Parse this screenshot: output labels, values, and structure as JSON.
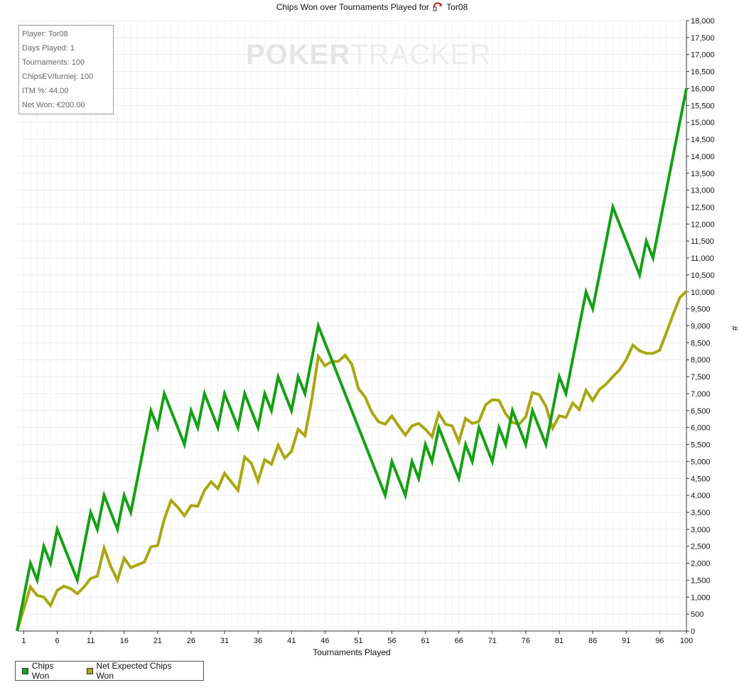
{
  "title_prefix": "Chips Won over Tournaments Played for",
  "player_name": "Tor08",
  "watermark": {
    "bold": "POKER",
    "light": "TRACKER"
  },
  "stats": {
    "player": "Player: Tor08",
    "days": "Days Played: 1",
    "tournaments": "Tournaments: 100",
    "chipsev": "ChipsEV/turniej: 100",
    "itm": "ITM %: 44.00",
    "net": "Net Won: €200.00"
  },
  "legend": {
    "chips_won": "Chips Won",
    "net_expected": "Net Expected Chips Won"
  },
  "colors": {
    "chips_won": "#16a016",
    "net_expected": "#a8a814",
    "grid": "#ececec"
  },
  "chart_data": {
    "type": "line",
    "title": "Chips Won over Tournaments Played for Tor08",
    "xlabel": "Tournaments Played",
    "ylabel": "#",
    "xlim": [
      0,
      100
    ],
    "ylim": [
      0,
      18000
    ],
    "x_ticks": [
      1,
      6,
      11,
      16,
      21,
      26,
      31,
      36,
      41,
      46,
      51,
      56,
      61,
      66,
      71,
      76,
      81,
      86,
      91,
      96,
      100
    ],
    "y_ticks": [
      "0",
      "500",
      "1,000",
      "1,500",
      "2,000",
      "2,500",
      "3,000",
      "3,500",
      "4,000",
      "4,500",
      "5,000",
      "5,500",
      "6,000",
      "6,500",
      "7,000",
      "7,500",
      "8,000",
      "8,500",
      "9,000",
      "9,500",
      "10,000",
      "10,500",
      "11,000",
      "11,500",
      "12,000",
      "12,500",
      "13,000",
      "13,500",
      "14,000",
      "14,500",
      "15,000",
      "15,500",
      "16,000",
      "16,500",
      "17,000",
      "17,500",
      "18,000"
    ],
    "y_tick_values": [
      0,
      500,
      1000,
      1500,
      2000,
      2500,
      3000,
      3500,
      4000,
      4500,
      5000,
      5500,
      6000,
      6500,
      7000,
      7500,
      8000,
      8500,
      9000,
      9500,
      10000,
      10500,
      11000,
      11500,
      12000,
      12500,
      13000,
      13500,
      14000,
      14500,
      15000,
      15500,
      16000,
      16500,
      17000,
      17500,
      18000
    ],
    "grid": true,
    "legend_position": "bottom-left",
    "series": [
      {
        "name": "Chips Won",
        "points": [
          [
            0,
            0
          ],
          [
            2,
            2000
          ],
          [
            3,
            1500
          ],
          [
            4,
            2500
          ],
          [
            5,
            2000
          ],
          [
            6,
            3000
          ],
          [
            9,
            1500
          ],
          [
            11,
            3500
          ],
          [
            12,
            3000
          ],
          [
            13,
            4000
          ],
          [
            15,
            3000
          ],
          [
            16,
            4000
          ],
          [
            17,
            3500
          ],
          [
            20,
            6500
          ],
          [
            21,
            6000
          ],
          [
            22,
            7000
          ],
          [
            25,
            5500
          ],
          [
            26,
            6500
          ],
          [
            27,
            6000
          ],
          [
            28,
            7000
          ],
          [
            30,
            6000
          ],
          [
            31,
            7000
          ],
          [
            33,
            6000
          ],
          [
            34,
            7000
          ],
          [
            36,
            6000
          ],
          [
            37,
            7000
          ],
          [
            38,
            6500
          ],
          [
            39,
            7500
          ],
          [
            41,
            6500
          ],
          [
            42,
            7500
          ],
          [
            43,
            7000
          ],
          [
            45,
            9000
          ],
          [
            55,
            4000
          ],
          [
            56,
            5000
          ],
          [
            58,
            4000
          ],
          [
            59,
            5000
          ],
          [
            60,
            4500
          ],
          [
            61,
            5500
          ],
          [
            62,
            5000
          ],
          [
            63,
            6000
          ],
          [
            66,
            4500
          ],
          [
            67,
            5500
          ],
          [
            68,
            5000
          ],
          [
            69,
            6000
          ],
          [
            71,
            5000
          ],
          [
            72,
            6000
          ],
          [
            73,
            5500
          ],
          [
            74,
            6500
          ],
          [
            76,
            5500
          ],
          [
            77,
            6500
          ],
          [
            79,
            5500
          ],
          [
            81,
            7500
          ],
          [
            82,
            7000
          ],
          [
            85,
            10000
          ],
          [
            86,
            9500
          ],
          [
            89,
            12500
          ],
          [
            93,
            10500
          ],
          [
            94,
            11500
          ],
          [
            95,
            11000
          ],
          [
            100,
            16000
          ]
        ]
      },
      {
        "name": "Net Expected Chips Won",
        "points": [
          [
            0,
            0
          ],
          [
            2,
            1300
          ],
          [
            3,
            1050
          ],
          [
            4,
            1000
          ],
          [
            5,
            750
          ],
          [
            6,
            1200
          ],
          [
            7,
            1320
          ],
          [
            8,
            1250
          ],
          [
            9,
            1100
          ],
          [
            10,
            1300
          ],
          [
            11,
            1550
          ],
          [
            12,
            1620
          ],
          [
            13,
            2450
          ],
          [
            14,
            1900
          ],
          [
            15,
            1500
          ],
          [
            16,
            2150
          ],
          [
            17,
            1870
          ],
          [
            18,
            1950
          ],
          [
            19,
            2030
          ],
          [
            20,
            2480
          ],
          [
            21,
            2520
          ],
          [
            22,
            3300
          ],
          [
            23,
            3850
          ],
          [
            24,
            3650
          ],
          [
            25,
            3400
          ],
          [
            26,
            3700
          ],
          [
            27,
            3680
          ],
          [
            28,
            4150
          ],
          [
            29,
            4400
          ],
          [
            30,
            4200
          ],
          [
            31,
            4650
          ],
          [
            32,
            4400
          ],
          [
            33,
            4150
          ],
          [
            34,
            5130
          ],
          [
            35,
            4950
          ],
          [
            36,
            4420
          ],
          [
            37,
            5050
          ],
          [
            38,
            4920
          ],
          [
            39,
            5480
          ],
          [
            40,
            5100
          ],
          [
            41,
            5300
          ],
          [
            42,
            5950
          ],
          [
            43,
            5760
          ],
          [
            44,
            6800
          ],
          [
            45,
            8100
          ],
          [
            46,
            7820
          ],
          [
            47,
            7950
          ],
          [
            48,
            7950
          ],
          [
            49,
            8130
          ],
          [
            50,
            7870
          ],
          [
            51,
            7150
          ],
          [
            52,
            6900
          ],
          [
            53,
            6450
          ],
          [
            54,
            6170
          ],
          [
            55,
            6100
          ],
          [
            56,
            6340
          ],
          [
            57,
            6050
          ],
          [
            58,
            5780
          ],
          [
            59,
            6050
          ],
          [
            60,
            6120
          ],
          [
            61,
            5950
          ],
          [
            62,
            5730
          ],
          [
            63,
            6420
          ],
          [
            64,
            6100
          ],
          [
            65,
            6050
          ],
          [
            66,
            5580
          ],
          [
            67,
            6270
          ],
          [
            68,
            6120
          ],
          [
            69,
            6180
          ],
          [
            70,
            6670
          ],
          [
            71,
            6820
          ],
          [
            72,
            6800
          ],
          [
            73,
            6400
          ],
          [
            74,
            6150
          ],
          [
            75,
            6100
          ],
          [
            76,
            6320
          ],
          [
            77,
            7030
          ],
          [
            78,
            6970
          ],
          [
            79,
            6630
          ],
          [
            80,
            5980
          ],
          [
            81,
            6350
          ],
          [
            82,
            6300
          ],
          [
            83,
            6720
          ],
          [
            84,
            6530
          ],
          [
            85,
            7100
          ],
          [
            86,
            6800
          ],
          [
            87,
            7120
          ],
          [
            88,
            7280
          ],
          [
            89,
            7500
          ],
          [
            90,
            7700
          ],
          [
            91,
            8000
          ],
          [
            92,
            8430
          ],
          [
            93,
            8260
          ],
          [
            94,
            8190
          ],
          [
            95,
            8190
          ],
          [
            96,
            8280
          ],
          [
            97,
            8790
          ],
          [
            98,
            9330
          ],
          [
            99,
            9830
          ],
          [
            100,
            10020
          ]
        ]
      }
    ]
  }
}
